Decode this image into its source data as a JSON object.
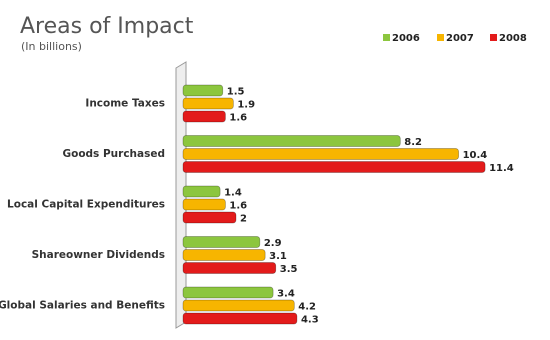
{
  "chart_data": {
    "type": "bar",
    "orientation": "horizontal",
    "title": "Areas of Impact",
    "subtitle": "(In billions)",
    "categories": [
      "Income Taxes",
      "Goods Purchased",
      "Local Capital Expenditures",
      "Shareowner Dividends",
      "Global Salaries and Benefits"
    ],
    "series": [
      {
        "name": "2006",
        "color": "#8cc63e",
        "values": [
          1.5,
          8.2,
          1.4,
          2.9,
          3.4
        ]
      },
      {
        "name": "2007",
        "color": "#f7b500",
        "values": [
          1.9,
          10.4,
          1.6,
          3.1,
          4.2
        ]
      },
      {
        "name": "2008",
        "color": "#e31b1b",
        "values": [
          1.6,
          11.4,
          2,
          3.5,
          4.3
        ]
      }
    ],
    "xlim": [
      0,
      12
    ],
    "legend": "top-right"
  }
}
